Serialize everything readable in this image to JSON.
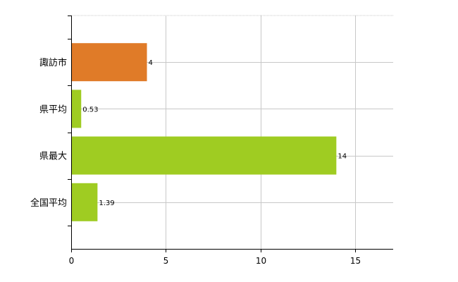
{
  "chart_data": {
    "type": "bar",
    "orientation": "horizontal",
    "categories": [
      "諏訪市",
      "県平均",
      "県最大",
      "全国平均"
    ],
    "values": [
      4,
      0.53,
      14,
      1.39
    ],
    "data_labels": [
      "4",
      "0.53",
      "14",
      "1.39"
    ],
    "bar_colors": [
      "#e07b28",
      "#9fcc22",
      "#9fcc22",
      "#9fcc22"
    ],
    "xlim": [
      0,
      17
    ],
    "xticks": [
      0,
      5,
      10,
      15
    ],
    "x_tick_labels": [
      "0",
      "5",
      "10",
      "15"
    ],
    "title": "",
    "xlabel": "",
    "ylabel": "",
    "grid": true,
    "legend": "none"
  }
}
